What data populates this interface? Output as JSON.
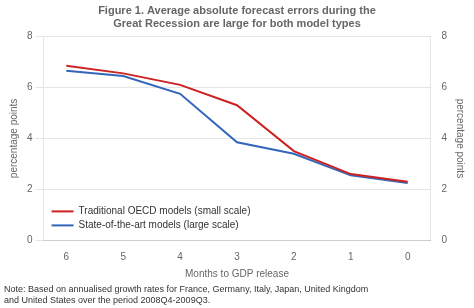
{
  "chart_data": {
    "type": "line",
    "title": "Figure 1. Average absolute forecast errors during the\nGreat Recession are large for both model types",
    "xlabel": "Months to GDP release",
    "ylabel": "percentage points",
    "y2label": "percentage points",
    "note": "Note: Based on annualised growth rates for France, Germany, Italy, Japan, United Kingdom\nand United States over the period 2008Q4-2009Q3.",
    "x": [
      6,
      5,
      4,
      3,
      2,
      1,
      0
    ],
    "series": [
      {
        "name": "Traditional OECD models (small scale)",
        "color": "#cc2222",
        "values": [
          6.85,
          6.55,
          6.1,
          5.3,
          3.5,
          2.6,
          2.3
        ]
      },
      {
        "name": "State-of-the-art models (large scale)",
        "color": "#3366bb",
        "values": [
          6.65,
          6.45,
          5.75,
          3.85,
          3.4,
          2.55,
          2.25
        ]
      }
    ],
    "xlim": [
      6.4,
      -0.4
    ],
    "xticks": [
      6,
      5,
      4,
      3,
      2,
      1,
      0
    ],
    "ylim": [
      0,
      8
    ],
    "yticks": [
      0,
      2,
      4,
      6,
      8
    ],
    "y2lim": [
      0,
      8
    ],
    "y2ticks": [
      0,
      2,
      4,
      6,
      8
    ],
    "grid": "y",
    "legend": "lower left"
  }
}
